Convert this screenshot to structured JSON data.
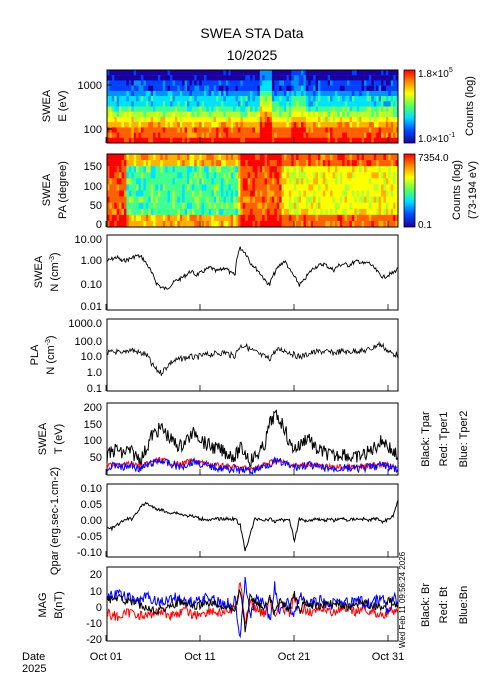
{
  "title": "SWEA STA Data",
  "subtitle": "10/2025",
  "timestamp": "Wed Feb 11 09:56:24 2026",
  "colors": {
    "black": "#000000",
    "red": "#ff0000",
    "blue": "#0000ff"
  },
  "chart_data": [
    {
      "type": "heatmap",
      "ylabel_1": "SWEA",
      "ylabel_2": "E (eV)",
      "yscale": "log",
      "ylim": [
        40,
        2500
      ],
      "yticks": [
        "1000",
        "100"
      ],
      "colorbar": {
        "max": "1.8×10",
        "max_exp": "5",
        "min": "1.0×10",
        "min_exp": "-1",
        "label": "Counts (log)"
      },
      "rows_desc": [
        "dark blue",
        "blue",
        "cyan",
        "green",
        "yellow",
        "orange",
        "red"
      ]
    },
    {
      "type": "heatmap",
      "ylabel_1": "SWEA",
      "ylabel_2": "PA (degree)",
      "ylim": [
        0,
        180
      ],
      "yticks": [
        "150",
        "100",
        "50",
        "0"
      ],
      "colorbar": {
        "max": "7354.0",
        "min": "0.1",
        "label": "Counts (log)",
        "label2": "(73-194 eV)"
      }
    },
    {
      "type": "line",
      "ylabel_1": "SWEA",
      "ylabel_2": "N (cm",
      "ylabel_sup": "-3",
      "ylabel_end": ")",
      "yscale": "log",
      "yticks": [
        "10.00",
        "1.00",
        "0.10",
        "0.01"
      ],
      "series": [
        {
          "color": "black",
          "values": [
            0.9,
            1.1,
            1.3,
            0.9,
            1.0,
            1.2,
            1.5,
            1.3,
            0.7,
            0.3,
            0.12,
            0.08,
            0.07,
            0.1,
            0.15,
            0.18,
            0.25,
            0.35,
            0.25,
            0.3,
            0.4,
            0.5,
            0.35,
            0.4,
            0.5,
            0.3,
            0.25,
            3.0,
            2.0,
            0.8,
            0.5,
            0.3,
            0.15,
            0.1,
            0.3,
            0.6,
            0.9,
            0.4,
            0.2,
            0.1,
            0.15,
            0.3,
            0.5,
            0.6,
            0.7,
            0.5,
            0.4,
            0.6,
            0.7,
            0.6,
            0.8,
            0.9,
            0.7,
            0.8,
            0.5,
            0.3,
            0.2,
            0.25,
            0.3,
            0.45
          ]
        }
      ]
    },
    {
      "type": "line",
      "ylabel_1": "PLA",
      "ylabel_2": "N (cm",
      "ylabel_sup": "-3",
      "ylabel_end": ")",
      "yscale": "log",
      "yticks": [
        "1000.0",
        "100.0",
        "10.0",
        "1.0",
        "0.1"
      ],
      "series": [
        {
          "color": "black",
          "values": [
            12,
            14,
            15,
            10,
            18,
            20,
            15,
            12,
            10,
            3,
            1.5,
            1,
            2,
            4,
            5,
            6,
            7,
            8,
            7,
            9,
            10,
            11,
            12,
            13,
            14,
            10,
            9,
            30,
            35,
            20,
            15,
            10,
            8,
            6,
            15,
            20,
            18,
            14,
            10,
            8,
            9,
            12,
            14,
            15,
            16,
            14,
            13,
            15,
            16,
            14,
            17,
            18,
            16,
            20,
            25,
            40,
            30,
            15,
            12,
            10
          ]
        }
      ]
    },
    {
      "type": "line",
      "ylabel_1": "SWEA",
      "ylabel_2": "T (eV)",
      "ylim": [
        25,
        200
      ],
      "yticks": [
        "200",
        "150",
        "100",
        "50"
      ],
      "legend": [
        "Black: Tpar",
        "Red: Tper1",
        "Blue: Tper2"
      ],
      "series": [
        {
          "name": "Tpar",
          "color": "black",
          "values": [
            70,
            80,
            90,
            75,
            85,
            80,
            70,
            65,
            90,
            120,
            130,
            140,
            125,
            110,
            100,
            95,
            110,
            120,
            130,
            115,
            100,
            95,
            90,
            85,
            80,
            75,
            70,
            90,
            80,
            60,
            70,
            80,
            100,
            150,
            170,
            160,
            140,
            100,
            90,
            95,
            110,
            120,
            90,
            85,
            80,
            75,
            70,
            75,
            80,
            70,
            65,
            70,
            75,
            80,
            90,
            100,
            110,
            95,
            80,
            70
          ]
        },
        {
          "name": "Tper1",
          "color": "red",
          "values": [
            45,
            50,
            55,
            48,
            50,
            52,
            48,
            45,
            50,
            55,
            60,
            62,
            58,
            55,
            52,
            50,
            55,
            58,
            60,
            55,
            52,
            50,
            48,
            47,
            46,
            45,
            44,
            40,
            42,
            38,
            42,
            45,
            50,
            55,
            60,
            58,
            55,
            50,
            48,
            47,
            50,
            52,
            48,
            46,
            45,
            44,
            43,
            44,
            45,
            44,
            43,
            44,
            45,
            46,
            48,
            50,
            52,
            48,
            45,
            44
          ]
        },
        {
          "name": "Tper2",
          "color": "blue",
          "values": [
            40,
            45,
            50,
            42,
            45,
            48,
            43,
            40,
            48,
            52,
            58,
            60,
            55,
            50,
            48,
            45,
            50,
            55,
            58,
            52,
            48,
            46,
            44,
            42,
            41,
            40,
            39,
            36,
            38,
            34,
            38,
            42,
            48,
            52,
            58,
            56,
            52,
            48,
            45,
            44,
            48,
            50,
            45,
            43,
            42,
            41,
            40,
            41,
            42,
            41,
            40,
            41,
            42,
            43,
            45,
            48,
            50,
            45,
            42,
            41
          ]
        }
      ]
    },
    {
      "type": "line",
      "ylabel_1": "Qpar (erg.sec-1.cm-2)",
      "ylim": [
        -0.12,
        0.11
      ],
      "yticks": [
        "0.10",
        "0.05",
        "0.00",
        "-0.05",
        "-0.10"
      ],
      "series": [
        {
          "color": "black",
          "values": [
            -0.03,
            -0.03,
            -0.02,
            -0.01,
            0.0,
            0.0,
            0.02,
            0.04,
            0.05,
            0.04,
            0.03,
            0.03,
            0.02,
            0.02,
            0.02,
            0.015,
            0.01,
            0.01,
            0.005,
            0.0,
            0.0,
            -0.005,
            0.0,
            0.0,
            0.0,
            0.0,
            0.0,
            -0.02,
            -0.1,
            -0.05,
            0.0,
            0.0,
            -0.005,
            0.0,
            -0.01,
            0.0,
            -0.005,
            0.0,
            -0.07,
            0.0,
            -0.005,
            -0.005,
            0.0,
            0.0,
            -0.005,
            0.0,
            -0.005,
            0.0,
            0.0,
            -0.005,
            0.0,
            0.0,
            0.0,
            -0.005,
            0.0,
            0.0,
            -0.01,
            0.0,
            0.01,
            0.06
          ]
        }
      ]
    },
    {
      "type": "line",
      "ylabel_1": "MAG",
      "ylabel_2": "B(nT)",
      "ylim": [
        -22,
        24
      ],
      "yticks": [
        "20",
        "10",
        "0",
        "-10",
        "-20"
      ],
      "legend": [
        "Black: Br",
        "Red: Bt",
        "Blue:Bn"
      ],
      "series": [
        {
          "name": "Br",
          "color": "black",
          "values": [
            3,
            4,
            5,
            4,
            3,
            2,
            1,
            0,
            -1,
            -2,
            -3,
            -2,
            -1,
            0,
            1,
            2,
            1,
            0,
            -1,
            0,
            1,
            2,
            1,
            0,
            -1,
            -2,
            -1,
            10,
            -15,
            5,
            2,
            0,
            -2,
            5,
            -5,
            3,
            0,
            -3,
            8,
            -4,
            2,
            0,
            1,
            -1,
            0,
            1,
            2,
            1,
            0,
            -1,
            0,
            1,
            2,
            1,
            0,
            -1,
            -2,
            3,
            2,
            1
          ]
        },
        {
          "name": "Bt",
          "color": "red",
          "values": [
            -5,
            -6,
            -7,
            -6,
            -5,
            -4,
            -5,
            -6,
            -7,
            -5,
            -4,
            -3,
            -5,
            -6,
            -5,
            -4,
            -3,
            -5,
            -6,
            -5,
            -4,
            -3,
            -4,
            -5,
            -4,
            -3,
            -2,
            15,
            -10,
            3,
            -2,
            -4,
            -5,
            4,
            -6,
            2,
            -3,
            -5,
            6,
            -5,
            -2,
            -3,
            -4,
            -3,
            -2,
            -3,
            -4,
            -3,
            -2,
            -3,
            -4,
            -3,
            -2,
            -3,
            -4,
            -5,
            -6,
            -4,
            -3,
            -2
          ]
        },
        {
          "name": "Bn",
          "color": "blue",
          "values": [
            5,
            6,
            7,
            6,
            5,
            4,
            3,
            4,
            5,
            4,
            3,
            2,
            3,
            4,
            5,
            4,
            3,
            2,
            3,
            4,
            5,
            4,
            3,
            2,
            1,
            2,
            3,
            -18,
            18,
            -8,
            4,
            2,
            1,
            -10,
            12,
            -5,
            3,
            1,
            -6,
            6,
            2,
            1,
            2,
            3,
            2,
            1,
            2,
            3,
            2,
            1,
            2,
            3,
            2,
            1,
            2,
            3,
            4,
            -5,
            6,
            3
          ]
        }
      ]
    }
  ],
  "xaxis": {
    "label_1": "Date",
    "label_2": "2025",
    "ticks": [
      "Oct 01",
      "Oct 11",
      "Oct 21",
      "Oct 31"
    ]
  }
}
